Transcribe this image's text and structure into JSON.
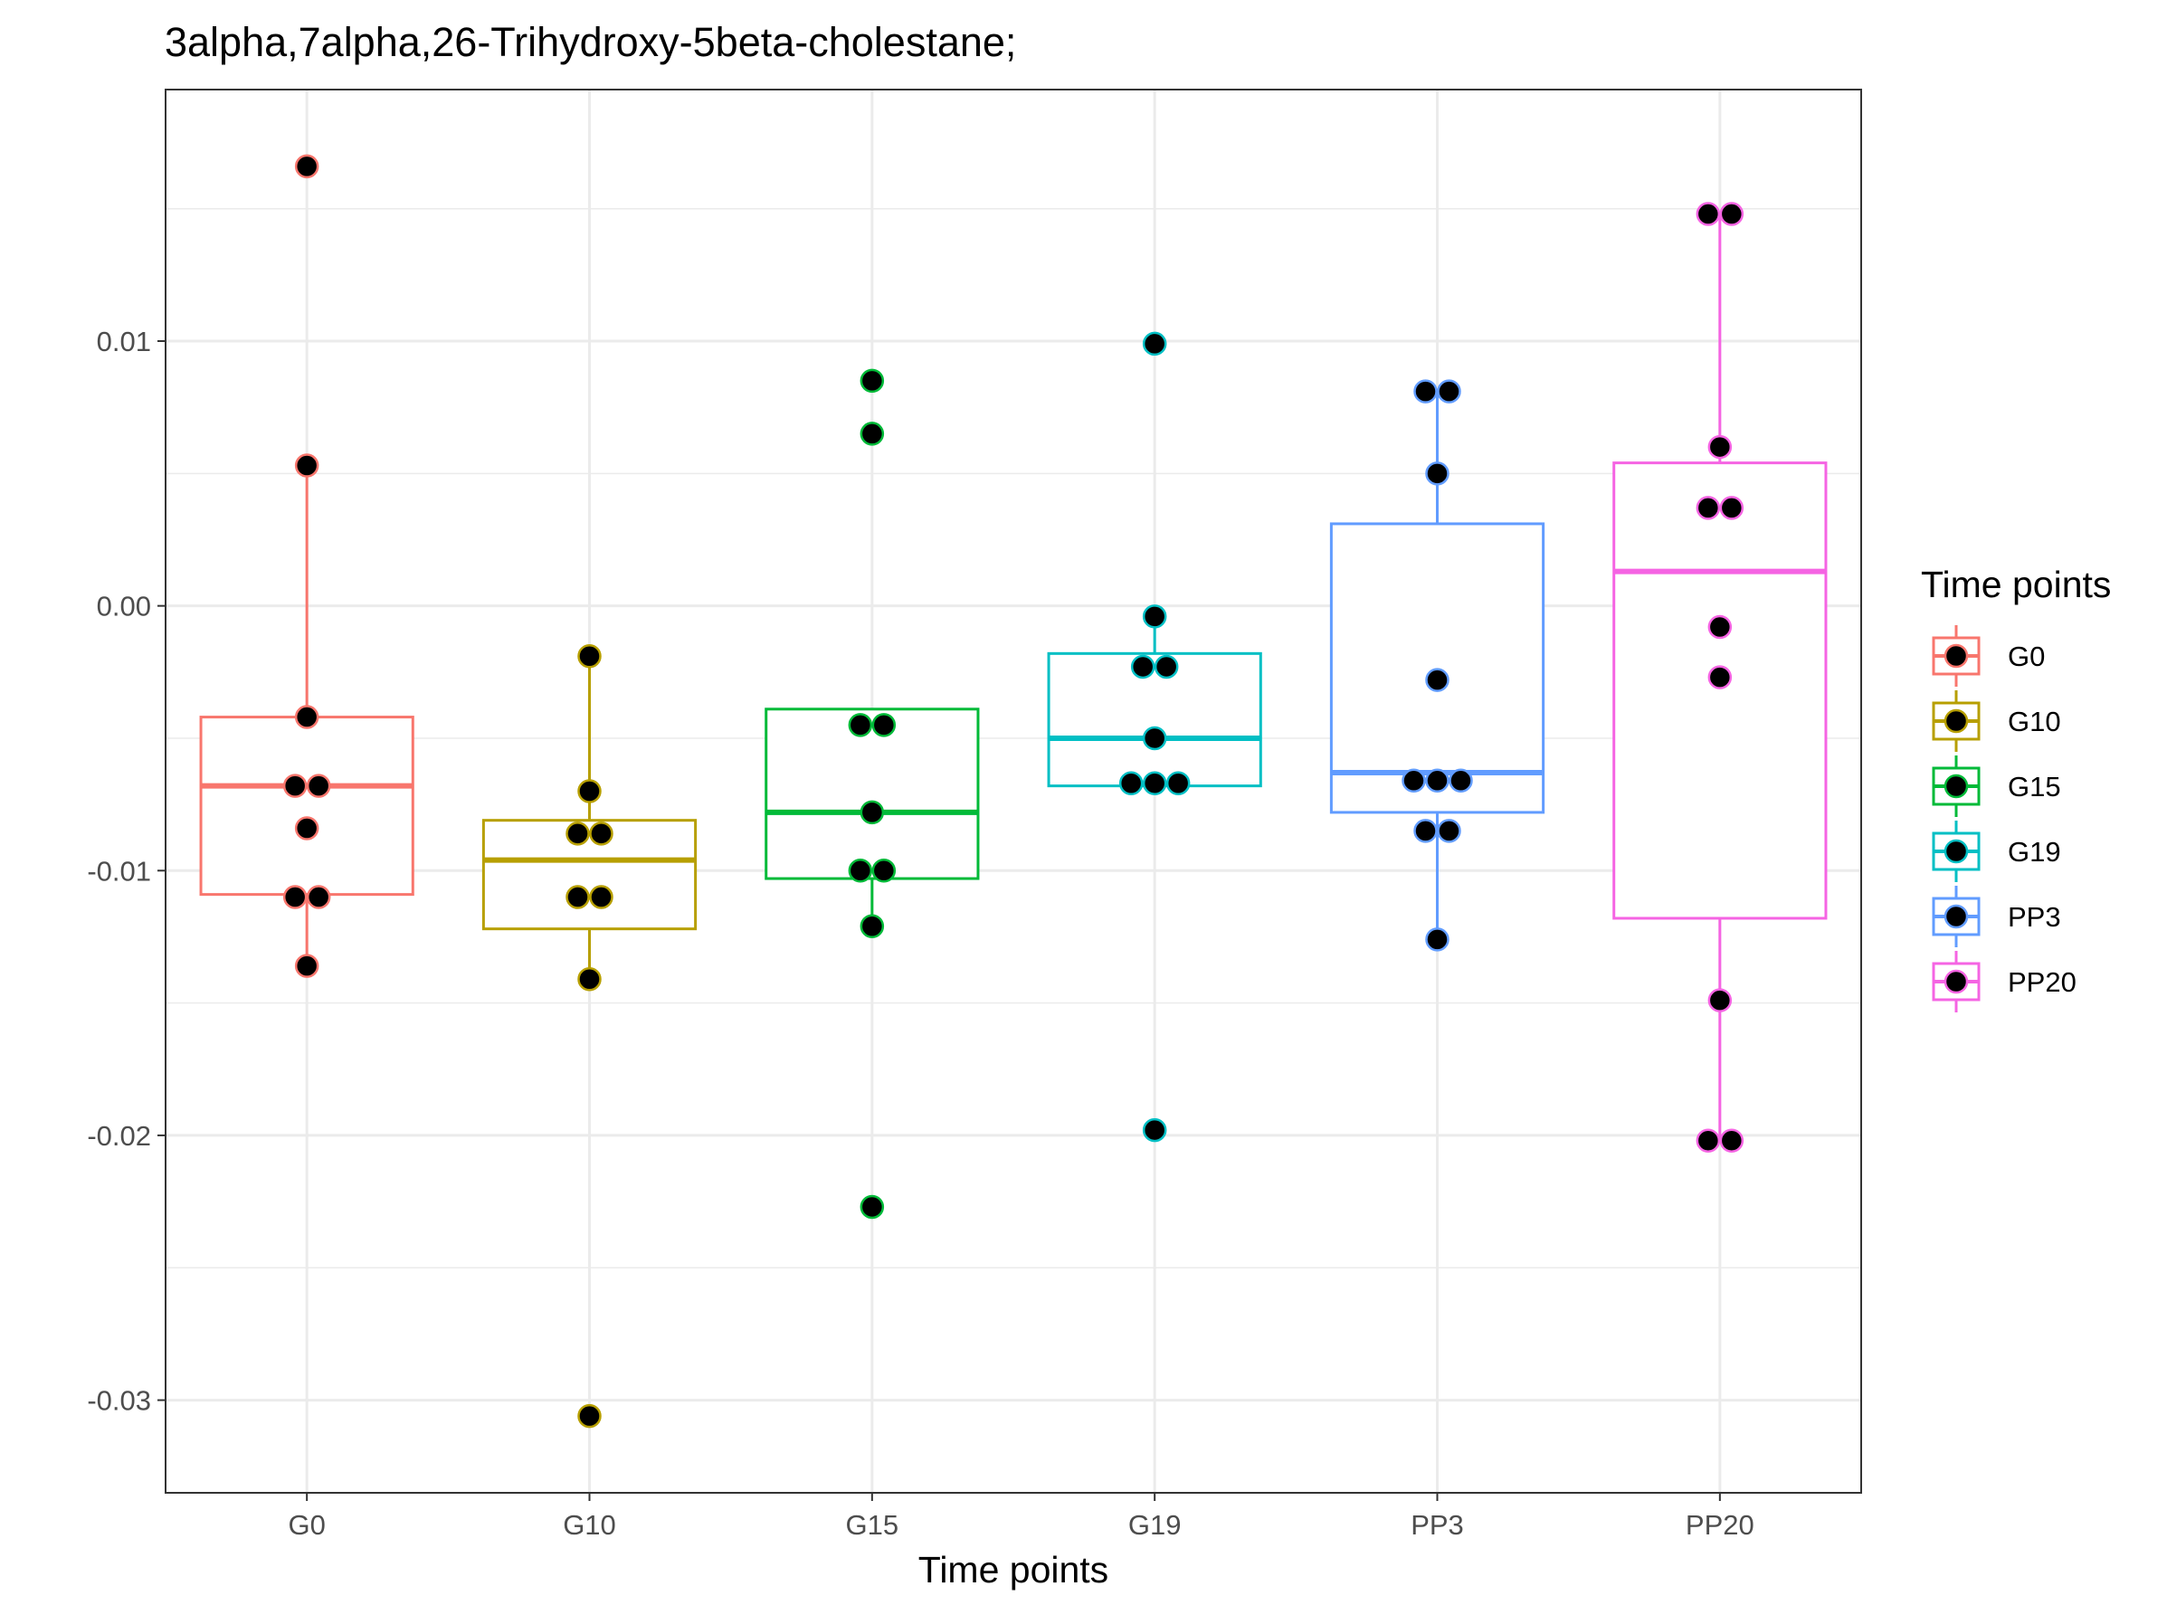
{
  "chart_data": {
    "type": "box",
    "title": "3alpha,7alpha,26-Trihydroxy-5beta-cholestane;",
    "xlabel": "Time points",
    "ylabel": "",
    "ylim": [
      -0.0335,
      0.0195
    ],
    "yticks": [
      0.01,
      0.0,
      -0.01,
      -0.02,
      -0.03
    ],
    "ytick_labels": [
      "0.01",
      "0.00",
      "-0.01",
      "-0.02",
      "-0.03"
    ],
    "grid": true,
    "legend": {
      "title": "Time points",
      "position": "right"
    },
    "categories": [
      "G0",
      "G10",
      "G15",
      "G19",
      "PP3",
      "PP20"
    ],
    "series": [
      {
        "name": "G0",
        "color": "#F8766D",
        "box": {
          "lower_whisker": -0.0136,
          "q1": -0.0109,
          "median": -0.0068,
          "q3": -0.0042,
          "upper_whisker": 0.0053
        },
        "points": [
          0.0166,
          0.0053,
          -0.0042,
          -0.0068,
          -0.0068,
          -0.0084,
          -0.011,
          -0.011,
          -0.0136
        ]
      },
      {
        "name": "G10",
        "color": "#B79F00",
        "box": {
          "lower_whisker": -0.0141,
          "q1": -0.0122,
          "median": -0.0096,
          "q3": -0.0081,
          "upper_whisker": -0.0019
        },
        "points": [
          -0.0019,
          -0.007,
          -0.0086,
          -0.0086,
          -0.011,
          -0.011,
          -0.0141,
          -0.0306
        ]
      },
      {
        "name": "G15",
        "color": "#00BA38",
        "box": {
          "lower_whisker": -0.0121,
          "q1": -0.0103,
          "median": -0.0078,
          "q3": -0.0039,
          "upper_whisker": -0.0039
        },
        "points": [
          0.0085,
          0.0065,
          -0.0045,
          -0.0045,
          -0.0078,
          -0.01,
          -0.01,
          -0.0121,
          -0.0227
        ]
      },
      {
        "name": "G19",
        "color": "#00BFC4",
        "box": {
          "lower_whisker": -0.0068,
          "q1": -0.0068,
          "median": -0.005,
          "q3": -0.0018,
          "upper_whisker": -0.0004
        },
        "points": [
          0.0099,
          -0.0004,
          -0.0023,
          -0.0023,
          -0.005,
          -0.0067,
          -0.0067,
          -0.0067,
          -0.0198
        ]
      },
      {
        "name": "PP3",
        "color": "#619CFF",
        "box": {
          "lower_whisker": -0.0126,
          "q1": -0.0078,
          "median": -0.0063,
          "q3": 0.0031,
          "upper_whisker": 0.0081
        },
        "points": [
          0.0081,
          0.0081,
          0.005,
          -0.0028,
          -0.0066,
          -0.0066,
          -0.0066,
          -0.0085,
          -0.0085,
          -0.0126
        ]
      },
      {
        "name": "PP20",
        "color": "#F564E3",
        "box": {
          "lower_whisker": -0.0202,
          "q1": -0.0118,
          "median": 0.0013,
          "q3": 0.0054,
          "upper_whisker": 0.0148
        },
        "points": [
          0.0148,
          0.0148,
          0.006,
          0.0037,
          0.0037,
          -0.0008,
          -0.0027,
          -0.0149,
          -0.0202,
          -0.0202
        ]
      }
    ]
  }
}
